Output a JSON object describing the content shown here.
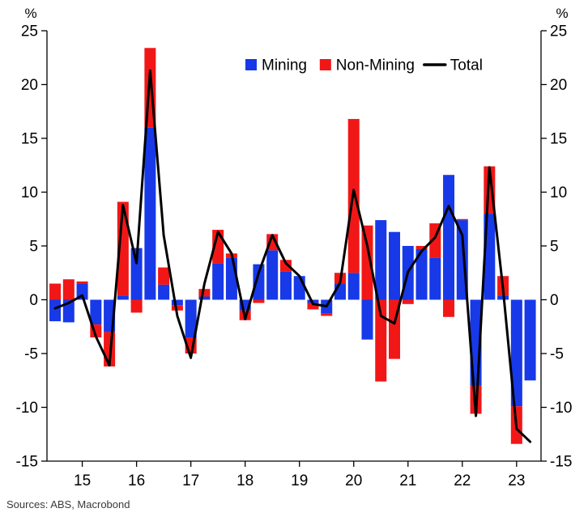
{
  "chart_data": {
    "type": "bar",
    "stacked": true,
    "title": "",
    "xlabel": "",
    "ylabel_left": "%",
    "ylabel_right": "%",
    "source": "Sources: ABS, Macrobond",
    "xlim": [
      2014.35,
      2023.45
    ],
    "ylim": [
      -15,
      25
    ],
    "yticks": [
      -15,
      -10,
      -5,
      0,
      5,
      10,
      15,
      20,
      25
    ],
    "xticks": [
      2015,
      2016,
      2017,
      2018,
      2019,
      2020,
      2021,
      2022,
      2023
    ],
    "xtick_labels": [
      "15",
      "16",
      "17",
      "18",
      "19",
      "20",
      "21",
      "22",
      "23"
    ],
    "legend_position": "top-center-inside",
    "x": [
      2014.5,
      2014.75,
      2015.0,
      2015.25,
      2015.5,
      2015.75,
      2016.0,
      2016.25,
      2016.5,
      2016.75,
      2017.0,
      2017.25,
      2017.5,
      2017.75,
      2018.0,
      2018.25,
      2018.5,
      2018.75,
      2019.0,
      2019.25,
      2019.5,
      2019.75,
      2020.0,
      2020.25,
      2020.5,
      2020.75,
      2021.0,
      2021.25,
      2021.5,
      2021.75,
      2022.0,
      2022.25,
      2022.5,
      2022.75,
      2023.0,
      2023.25
    ],
    "series": [
      {
        "name": "Mining",
        "color": "#1739e8",
        "values": [
          -2.0,
          -2.1,
          1.5,
          -2.3,
          -3.0,
          0.4,
          4.8,
          16.0,
          1.4,
          -0.5,
          -3.5,
          0.3,
          3.4,
          3.9,
          -1.0,
          3.3,
          4.6,
          2.6,
          2.2,
          -0.3,
          -1.3,
          1.5,
          2.5,
          -3.7,
          7.4,
          6.3,
          5.0,
          4.7,
          3.9,
          11.6,
          7.4,
          -8.0,
          8.0,
          0.4,
          -9.9,
          -7.5
        ]
      },
      {
        "name": "Non-Mining",
        "color": "#f11717",
        "values": [
          1.5,
          1.9,
          0.2,
          -1.2,
          -3.2,
          8.7,
          -1.2,
          7.4,
          1.6,
          -0.5,
          -1.5,
          0.7,
          3.1,
          0.4,
          -0.9,
          -0.3,
          1.5,
          1.1,
          0.0,
          -0.6,
          -0.2,
          1.0,
          14.3,
          6.9,
          -7.6,
          -5.5,
          -0.4,
          0.3,
          3.2,
          -1.6,
          0.1,
          -2.6,
          4.4,
          1.8,
          -3.5,
          0.0
        ]
      }
    ],
    "line": {
      "name": "Total",
      "color": "#000000",
      "values": [
        -0.8,
        -0.3,
        0.4,
        -3.4,
        -6.1,
        8.8,
        3.4,
        21.3,
        6.0,
        -1.5,
        -5.4,
        1.5,
        6.3,
        4.3,
        -1.8,
        2.5,
        6.0,
        3.4,
        2.2,
        -0.4,
        -0.6,
        1.6,
        10.2,
        5.0,
        -1.5,
        -2.2,
        2.6,
        4.5,
        5.8,
        8.7,
        6.0,
        -10.8,
        12.3,
        1.0,
        -12.0,
        -13.2
      ]
    }
  }
}
